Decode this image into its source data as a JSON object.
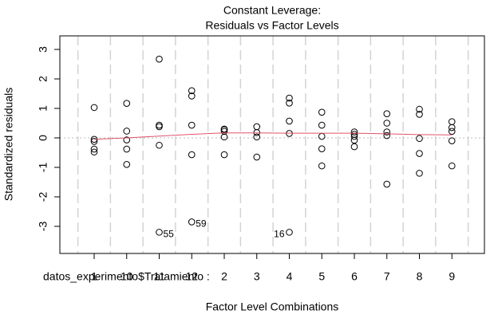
{
  "chart_data": {
    "type": "scatter",
    "title": "Constant Leverage:",
    "subtitle": "Residuals vs Factor Levels",
    "x_label": "Factor Level Combinations",
    "y_label": "Standardized residuals",
    "factor_label": "datos_experimento$Tratamiento :",
    "categories": [
      "1",
      "10",
      "11",
      "12",
      "2",
      "3",
      "4",
      "5",
      "6",
      "7",
      "8",
      "9"
    ],
    "groups": [
      {
        "values": [
          1.03,
          -0.05,
          -0.12,
          -0.38,
          -0.48
        ],
        "point_labels": [
          null,
          null,
          null,
          null,
          null
        ]
      },
      {
        "values": [
          1.17,
          0.23,
          -0.07,
          -0.38,
          -0.9
        ],
        "point_labels": [
          null,
          null,
          null,
          null,
          null
        ]
      },
      {
        "values": [
          2.67,
          0.43,
          0.38,
          -0.25,
          -3.2
        ],
        "point_labels": [
          null,
          null,
          null,
          null,
          "55"
        ]
      },
      {
        "values": [
          1.6,
          1.42,
          0.43,
          -0.57,
          -2.85
        ],
        "point_labels": [
          null,
          null,
          null,
          null,
          "59"
        ]
      },
      {
        "values": [
          0.3,
          0.28,
          0.22,
          0.03,
          -0.57
        ],
        "point_labels": [
          null,
          null,
          null,
          null,
          null
        ]
      },
      {
        "values": [
          0.38,
          0.18,
          0.03,
          -0.65
        ],
        "point_labels": [
          null,
          null,
          null,
          null
        ]
      },
      {
        "values": [
          1.35,
          1.18,
          0.57,
          0.15,
          -3.2
        ],
        "point_labels": [
          null,
          null,
          null,
          null,
          "16"
        ]
      },
      {
        "values": [
          0.87,
          0.43,
          0.05,
          -0.37,
          -0.95
        ],
        "point_labels": [
          null,
          null,
          null,
          null,
          null
        ]
      },
      {
        "values": [
          0.2,
          0.12,
          0.05,
          -0.08,
          -0.3
        ],
        "point_labels": [
          null,
          null,
          null,
          null,
          null
        ]
      },
      {
        "values": [
          0.82,
          0.5,
          0.2,
          0.08,
          -1.57
        ],
        "point_labels": [
          null,
          null,
          null,
          null,
          null
        ]
      },
      {
        "values": [
          0.97,
          0.8,
          -0.02,
          -0.53,
          -1.2
        ],
        "point_labels": [
          null,
          null,
          null,
          null,
          null
        ]
      },
      {
        "values": [
          0.55,
          0.35,
          0.22,
          -0.1,
          -0.95
        ],
        "point_labels": [
          null,
          null,
          null,
          null,
          null
        ]
      }
    ],
    "smooth": {
      "color": "#df536b",
      "values": [
        -0.05,
        0.0,
        0.06,
        0.12,
        0.17,
        0.17,
        0.16,
        0.16,
        0.16,
        0.14,
        0.11,
        0.1
      ]
    },
    "reference_line": 0,
    "ylim": [
      -3.92,
      3.46
    ],
    "yticks": [
      -3,
      -2,
      -1,
      0,
      1,
      2,
      3
    ]
  }
}
